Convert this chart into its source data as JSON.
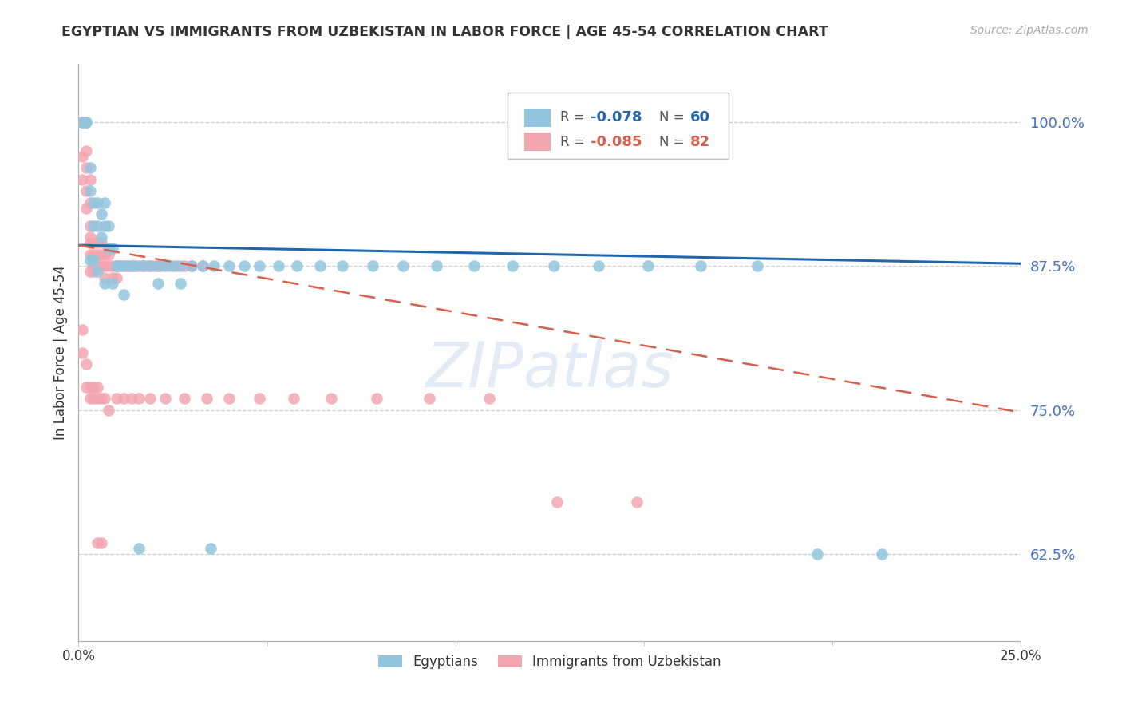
{
  "title": "EGYPTIAN VS IMMIGRANTS FROM UZBEKISTAN IN LABOR FORCE | AGE 45-54 CORRELATION CHART",
  "source": "Source: ZipAtlas.com",
  "ylabel": "In Labor Force | Age 45-54",
  "xlim": [
    0.0,
    0.25
  ],
  "ylim": [
    0.55,
    1.05
  ],
  "yticks": [
    0.625,
    0.75,
    0.875,
    1.0
  ],
  "ytick_labels": [
    "62.5%",
    "75.0%",
    "87.5%",
    "100.0%"
  ],
  "xticks": [
    0.0,
    0.05,
    0.1,
    0.15,
    0.2,
    0.25
  ],
  "xtick_labels": [
    "0.0%",
    "",
    "",
    "",
    "",
    "25.0%"
  ],
  "color_blue": "#92c5de",
  "color_pink": "#f4a6b0",
  "line_color_blue": "#2166ac",
  "line_color_pink": "#d6604d",
  "blue_trend_x": [
    0.0,
    0.25
  ],
  "blue_trend_y": [
    0.893,
    0.877
  ],
  "pink_trend_x": [
    0.0,
    0.25
  ],
  "pink_trend_y": [
    0.893,
    0.748
  ],
  "blue_scatter_x": [
    0.001,
    0.002,
    0.002,
    0.003,
    0.003,
    0.004,
    0.004,
    0.005,
    0.005,
    0.006,
    0.006,
    0.007,
    0.007,
    0.008,
    0.008,
    0.009,
    0.01,
    0.011,
    0.012,
    0.013,
    0.014,
    0.015,
    0.017,
    0.019,
    0.021,
    0.023,
    0.025,
    0.027,
    0.03,
    0.033,
    0.036,
    0.04,
    0.044,
    0.048,
    0.053,
    0.058,
    0.064,
    0.07,
    0.078,
    0.086,
    0.095,
    0.105,
    0.115,
    0.126,
    0.138,
    0.151,
    0.165,
    0.18,
    0.196,
    0.213,
    0.003,
    0.004,
    0.005,
    0.007,
    0.009,
    0.012,
    0.016,
    0.021,
    0.027,
    0.035
  ],
  "blue_scatter_y": [
    1.0,
    1.0,
    1.0,
    0.94,
    0.96,
    0.91,
    0.93,
    0.91,
    0.93,
    0.9,
    0.92,
    0.91,
    0.93,
    0.89,
    0.91,
    0.89,
    0.875,
    0.875,
    0.875,
    0.875,
    0.875,
    0.875,
    0.875,
    0.875,
    0.875,
    0.875,
    0.875,
    0.875,
    0.875,
    0.875,
    0.875,
    0.875,
    0.875,
    0.875,
    0.875,
    0.875,
    0.875,
    0.875,
    0.875,
    0.875,
    0.875,
    0.875,
    0.875,
    0.875,
    0.875,
    0.875,
    0.875,
    0.875,
    0.625,
    0.625,
    0.88,
    0.88,
    0.87,
    0.86,
    0.86,
    0.85,
    0.63,
    0.86,
    0.86,
    0.63
  ],
  "pink_scatter_x": [
    0.001,
    0.001,
    0.001,
    0.002,
    0.002,
    0.002,
    0.002,
    0.003,
    0.003,
    0.003,
    0.003,
    0.003,
    0.003,
    0.003,
    0.004,
    0.004,
    0.004,
    0.004,
    0.005,
    0.005,
    0.005,
    0.006,
    0.006,
    0.006,
    0.007,
    0.007,
    0.007,
    0.008,
    0.008,
    0.009,
    0.009,
    0.01,
    0.01,
    0.011,
    0.012,
    0.013,
    0.014,
    0.015,
    0.016,
    0.017,
    0.018,
    0.019,
    0.02,
    0.021,
    0.022,
    0.024,
    0.026,
    0.028,
    0.03,
    0.033,
    0.001,
    0.001,
    0.002,
    0.002,
    0.003,
    0.003,
    0.004,
    0.004,
    0.005,
    0.005,
    0.006,
    0.007,
    0.008,
    0.01,
    0.012,
    0.014,
    0.016,
    0.019,
    0.023,
    0.028,
    0.034,
    0.04,
    0.048,
    0.057,
    0.067,
    0.079,
    0.093,
    0.109,
    0.127,
    0.148,
    0.005,
    0.006
  ],
  "pink_scatter_y": [
    1.0,
    0.97,
    0.95,
    0.975,
    0.96,
    0.94,
    0.925,
    0.95,
    0.93,
    0.91,
    0.9,
    0.895,
    0.885,
    0.87,
    0.895,
    0.885,
    0.875,
    0.87,
    0.895,
    0.885,
    0.875,
    0.895,
    0.885,
    0.875,
    0.885,
    0.875,
    0.865,
    0.885,
    0.875,
    0.875,
    0.865,
    0.875,
    0.865,
    0.875,
    0.875,
    0.875,
    0.875,
    0.875,
    0.875,
    0.875,
    0.875,
    0.875,
    0.875,
    0.875,
    0.875,
    0.875,
    0.875,
    0.875,
    0.875,
    0.875,
    0.82,
    0.8,
    0.79,
    0.77,
    0.77,
    0.76,
    0.77,
    0.76,
    0.77,
    0.76,
    0.76,
    0.76,
    0.75,
    0.76,
    0.76,
    0.76,
    0.76,
    0.76,
    0.76,
    0.76,
    0.76,
    0.76,
    0.76,
    0.76,
    0.76,
    0.76,
    0.76,
    0.76,
    0.67,
    0.67,
    0.635,
    0.635
  ]
}
